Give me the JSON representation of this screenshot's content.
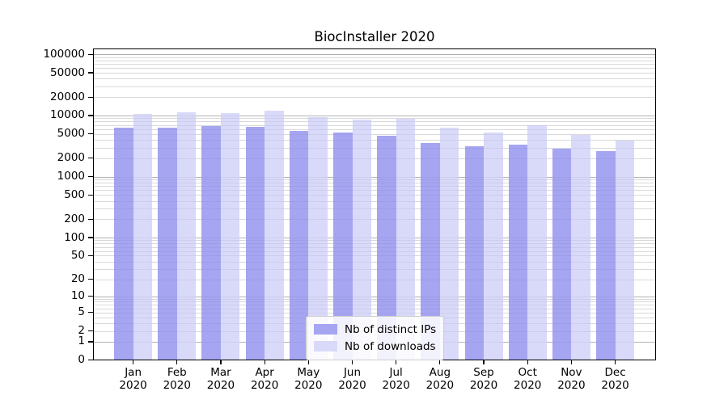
{
  "title": "BiocInstaller 2020",
  "chart_data": {
    "type": "bar",
    "title": "BiocInstaller 2020",
    "categories": [
      {
        "month": "Jan",
        "year": "2020"
      },
      {
        "month": "Feb",
        "year": "2020"
      },
      {
        "month": "Mar",
        "year": "2020"
      },
      {
        "month": "Apr",
        "year": "2020"
      },
      {
        "month": "May",
        "year": "2020"
      },
      {
        "month": "Jun",
        "year": "2020"
      },
      {
        "month": "Jul",
        "year": "2020"
      },
      {
        "month": "Aug",
        "year": "2020"
      },
      {
        "month": "Sep",
        "year": "2020"
      },
      {
        "month": "Oct",
        "year": "2020"
      },
      {
        "month": "Nov",
        "year": "2020"
      },
      {
        "month": "Dec",
        "year": "2020"
      }
    ],
    "series": [
      {
        "name": "Nb of distinct IPs",
        "color": "#a5a5f2",
        "values": [
          6400,
          6400,
          6700,
          6600,
          5600,
          5200,
          4700,
          3600,
          3150,
          3300,
          2900,
          2650
        ]
      },
      {
        "name": "Nb of downloads",
        "color": "#d9d9f9",
        "values": [
          10700,
          11300,
          10800,
          12100,
          9300,
          8500,
          8800,
          6400,
          5200,
          7000,
          4750,
          3850
        ]
      }
    ],
    "yscale": "log10(1+x)",
    "yticks": [
      0,
      1,
      2,
      5,
      10,
      20,
      50,
      100,
      200,
      500,
      1000,
      2000,
      5000,
      10000,
      20000,
      50000,
      100000
    ],
    "ylim": [
      0,
      125000
    ],
    "xlabel": "",
    "ylabel": "",
    "grid": "horizontal major + log minor",
    "legend_position": "lower center",
    "axis_color": "#000000",
    "major_grid_color": "#bcbcbc",
    "minor_grid_color": "#e7e7e7"
  }
}
